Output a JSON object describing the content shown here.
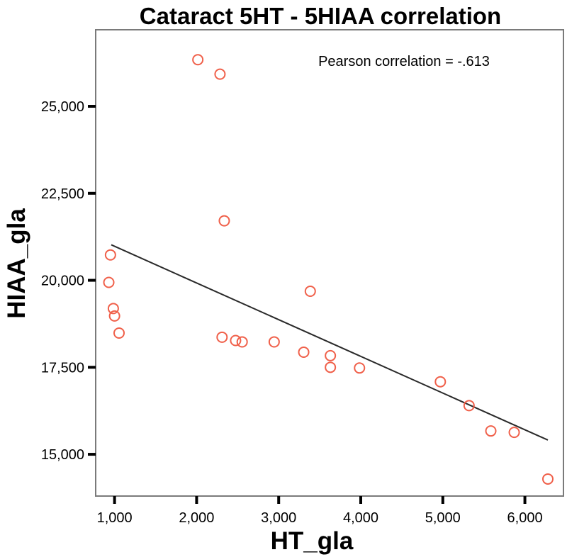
{
  "chart_data": {
    "type": "scatter",
    "title": "Cataract 5HT - 5HIAA correlation",
    "xlabel": "HT_gla",
    "ylabel": "HIAA_gla",
    "annotation": "Pearson correlation = -.613",
    "xlim": [
      770,
      6470
    ],
    "ylim": [
      13800,
      27200
    ],
    "x_ticks": [
      1000,
      2000,
      3000,
      4000,
      5000,
      6000
    ],
    "x_tick_labels": [
      "1,000",
      "2,000",
      "3,000",
      "4,000",
      "5,000",
      "6,000"
    ],
    "y_ticks": [
      15000,
      17500,
      20000,
      22500,
      25000
    ],
    "y_tick_labels": [
      "15,000",
      "17,500",
      "20,000",
      "22,500",
      "25,000"
    ],
    "grid": false,
    "marker_color": "#f0604a",
    "line_color": "#2a2a2a",
    "points": [
      {
        "x": 2015,
        "y": 26340
      },
      {
        "x": 2285,
        "y": 25925
      },
      {
        "x": 2337,
        "y": 21710
      },
      {
        "x": 950,
        "y": 20730
      },
      {
        "x": 930,
        "y": 19940
      },
      {
        "x": 985,
        "y": 19190
      },
      {
        "x": 1000,
        "y": 18975
      },
      {
        "x": 1055,
        "y": 18485
      },
      {
        "x": 2310,
        "y": 18365
      },
      {
        "x": 2475,
        "y": 18270
      },
      {
        "x": 2555,
        "y": 18230
      },
      {
        "x": 2945,
        "y": 18230
      },
      {
        "x": 3305,
        "y": 17935
      },
      {
        "x": 3385,
        "y": 19685
      },
      {
        "x": 3630,
        "y": 17835
      },
      {
        "x": 3630,
        "y": 17500
      },
      {
        "x": 3985,
        "y": 17480
      },
      {
        "x": 4970,
        "y": 17085
      },
      {
        "x": 5320,
        "y": 16400
      },
      {
        "x": 5585,
        "y": 15670
      },
      {
        "x": 5870,
        "y": 15630
      },
      {
        "x": 6280,
        "y": 14290
      }
    ],
    "fit_line": {
      "x": [
        960,
        6280
      ],
      "y": [
        21020,
        15410
      ]
    }
  }
}
